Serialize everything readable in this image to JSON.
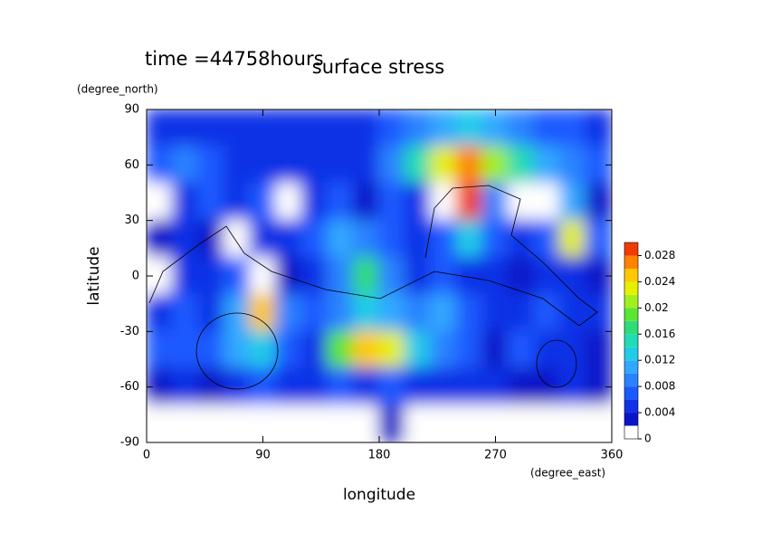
{
  "chart_data": {
    "type": "contour",
    "title": "surface stress",
    "subtitle": "time =44758hours",
    "xlabel": "longitude",
    "xunit": "(degree_east)",
    "ylabel": "latitude",
    "yunit": "(degree_north)",
    "xlim": [
      0,
      360
    ],
    "ylim": [
      -90,
      90
    ],
    "xticks": [
      0,
      90,
      180,
      270,
      360
    ],
    "yticks": [
      -90,
      -60,
      -30,
      0,
      30,
      60,
      90
    ],
    "x": [
      10,
      30,
      50,
      70,
      90,
      110,
      130,
      150,
      170,
      190,
      210,
      230,
      250,
      270,
      290,
      310,
      330,
      350
    ],
    "y": [
      80,
      60,
      40,
      20,
      0,
      -20,
      -40,
      -60,
      -80
    ],
    "values": [
      [
        0.004,
        0.005,
        0.005,
        0.004,
        0.004,
        0.005,
        0.005,
        0.005,
        0.005,
        0.006,
        0.008,
        0.01,
        0.012,
        0.01,
        0.008,
        0.007,
        0.006,
        0.005
      ],
      [
        0.007,
        0.008,
        0.006,
        0.005,
        0.005,
        0.005,
        0.004,
        0.005,
        0.005,
        0.008,
        0.014,
        0.022,
        0.026,
        0.02,
        0.014,
        0.01,
        0.009,
        0.007
      ],
      [
        0,
        0.004,
        0.006,
        0.005,
        0.007,
        0,
        0.004,
        0.006,
        0.003,
        0.006,
        0.004,
        0,
        0.03,
        0.008,
        0,
        0,
        0.01,
        0.003
      ],
      [
        0.003,
        0.004,
        0.003,
        0,
        0.005,
        0.004,
        0.006,
        0.01,
        0.008,
        0.006,
        0.004,
        0.006,
        0.012,
        0.006,
        0.005,
        0.006,
        0.022,
        0.006
      ],
      [
        0,
        0.004,
        0.005,
        0.006,
        0,
        0.003,
        0.004,
        0.008,
        0.016,
        0.008,
        0.005,
        0.006,
        0.005,
        0.004,
        0.003,
        0.005,
        0.004,
        0.003
      ],
      [
        0.005,
        0.006,
        0.005,
        0.01,
        0.024,
        0.008,
        0.006,
        0.008,
        0.012,
        0.01,
        0.008,
        0.01,
        0.006,
        0.005,
        0.004,
        0.006,
        0.005,
        0.005
      ],
      [
        0.006,
        0.007,
        0.006,
        0.01,
        0.012,
        0.006,
        0.004,
        0.018,
        0.024,
        0.022,
        0.012,
        0.008,
        0.006,
        0.003,
        0.006,
        0.005,
        0.004,
        0.003
      ],
      [
        0.003,
        0.004,
        0.003,
        0.005,
        0.006,
        0.005,
        0.004,
        0.006,
        0.005,
        0.006,
        0.004,
        0.005,
        0.005,
        0.004,
        0.003,
        0.002,
        0.004,
        0.003
      ],
      [
        0,
        0,
        0,
        0,
        0,
        0,
        0,
        0,
        0,
        0.002,
        0,
        0,
        0,
        0,
        0,
        0,
        0,
        0
      ]
    ],
    "levels": [
      0,
      0.002,
      0.004,
      0.006,
      0.008,
      0.01,
      0.012,
      0.014,
      0.016,
      0.018,
      0.02,
      0.022,
      0.024,
      0.026,
      0.028,
      0.03
    ],
    "colors": [
      "#ffffff",
      "#0a14c8",
      "#0f32e6",
      "#1a5aff",
      "#2a82ff",
      "#30a8ff",
      "#20cce8",
      "#20dcb4",
      "#30dc78",
      "#5ae632",
      "#a0f01e",
      "#e6f000",
      "#ffc800",
      "#ff8200",
      "#f03c00"
    ],
    "colorbar_ticks": [
      0,
      0.004,
      0.008,
      0.012,
      0.016,
      0.02,
      0.024,
      0.028
    ]
  }
}
